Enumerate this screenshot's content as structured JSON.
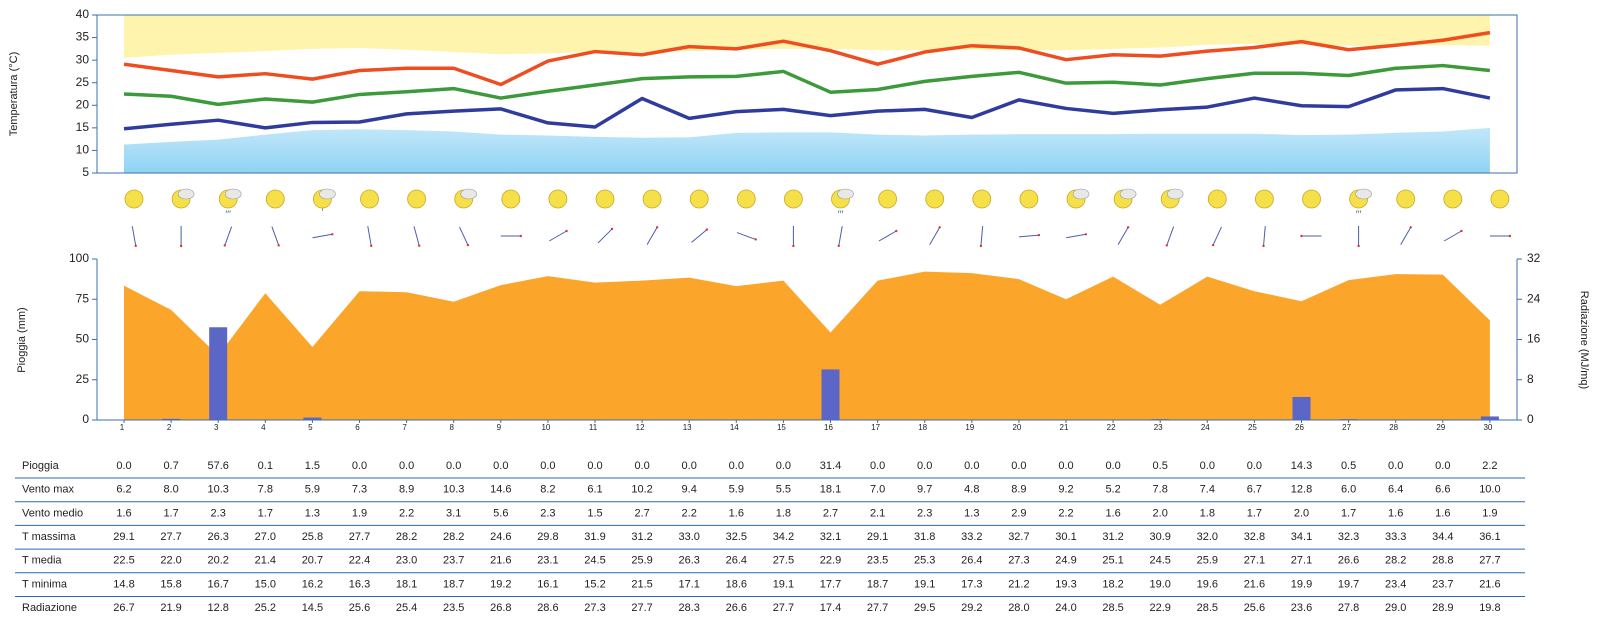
{
  "temperature_chart": {
    "type": "line",
    "y_label": "Temperatura (°C)",
    "ylim": [
      5,
      40
    ],
    "yticks": [
      5,
      10,
      15,
      20,
      25,
      30,
      35,
      40
    ],
    "band_top": {
      "color": "#fff4ad",
      "lows": [
        30.5,
        31.2,
        31.6,
        32,
        32.5,
        32.7,
        32.3,
        31.8,
        31.3,
        31.5,
        31.8,
        31.8,
        32,
        32.3,
        32.5,
        32.5,
        32.2,
        32.2,
        32.3,
        32.2,
        32.2,
        32.5,
        32.8,
        33.4,
        33.6,
        33.4,
        33.2,
        33.2,
        33.3,
        33.2
      ]
    },
    "band_bottom": {
      "color": "#8fd3f4",
      "highs": [
        11.3,
        11.9,
        12.4,
        13.5,
        14.5,
        14.7,
        14.5,
        14.2,
        13.5,
        13.3,
        13,
        12.8,
        12.9,
        13.9,
        14,
        14,
        13.5,
        13.3,
        13.5,
        13.6,
        13.6,
        13.6,
        13.7,
        13.7,
        13.7,
        13.4,
        13.5,
        13.9,
        14.2,
        15
      ]
    }
  },
  "rain_chart": {
    "type": "bar",
    "y_label": "Pioggia (mm)",
    "y2_label": "Radiazione (MJ/mq)",
    "ylim": [
      0,
      100
    ],
    "yticks": [
      0,
      25,
      50,
      75,
      100
    ],
    "y2lim": [
      0,
      32
    ],
    "y2ticks": [
      0,
      8,
      16,
      24,
      32
    ],
    "categories": [
      "1",
      "2",
      "3",
      "4",
      "5",
      "6",
      "7",
      "8",
      "9",
      "10",
      "11",
      "12",
      "13",
      "14",
      "15",
      "16",
      "17",
      "18",
      "19",
      "20",
      "21",
      "22",
      "23",
      "24",
      "25",
      "26",
      "27",
      "28",
      "29",
      "30"
    ]
  },
  "table": {
    "rows": [
      {
        "label": "Pioggia",
        "color": "#5b66c6",
        "values": [
          "0.0",
          "0.7",
          "57.6",
          "0.1",
          "1.5",
          "0.0",
          "0.0",
          "0.0",
          "0.0",
          "0.0",
          "0.0",
          "0.0",
          "0.0",
          "0.0",
          "0.0",
          "31.4",
          "0.0",
          "0.0",
          "0.0",
          "0.0",
          "0.0",
          "0.0",
          "0.5",
          "0.0",
          "0.0",
          "14.3",
          "0.5",
          "0.0",
          "0.0",
          "2.2"
        ]
      },
      {
        "label": "Vento max",
        "values": [
          "6.2",
          "8.0",
          "10.3",
          "7.8",
          "5.9",
          "7.3",
          "8.9",
          "10.3",
          "14.6",
          "8.2",
          "6.1",
          "10.2",
          "9.4",
          "5.9",
          "5.5",
          "18.1",
          "7.0",
          "9.7",
          "4.8",
          "8.9",
          "9.2",
          "5.2",
          "7.8",
          "7.4",
          "6.7",
          "12.8",
          "6.0",
          "6.4",
          "6.6",
          "10.0"
        ]
      },
      {
        "label": "Vento medio",
        "values": [
          "1.6",
          "1.7",
          "2.3",
          "1.7",
          "1.3",
          "1.9",
          "2.2",
          "3.1",
          "5.6",
          "2.3",
          "1.5",
          "2.7",
          "2.2",
          "1.6",
          "1.8",
          "2.7",
          "2.1",
          "2.3",
          "1.3",
          "2.9",
          "2.2",
          "1.6",
          "2.0",
          "1.8",
          "1.7",
          "2.0",
          "1.7",
          "1.6",
          "1.6",
          "1.9"
        ]
      },
      {
        "label": "T massima",
        "color": "#ee4d1f",
        "values": [
          "29.1",
          "27.7",
          "26.3",
          "27.0",
          "25.8",
          "27.7",
          "28.2",
          "28.2",
          "24.6",
          "29.8",
          "31.9",
          "31.2",
          "33.0",
          "32.5",
          "34.2",
          "32.1",
          "29.1",
          "31.8",
          "33.2",
          "32.7",
          "30.1",
          "31.2",
          "30.9",
          "32.0",
          "32.8",
          "34.1",
          "32.3",
          "33.3",
          "34.4",
          "36.1"
        ]
      },
      {
        "label": "T media",
        "color": "#3d9a3a",
        "values": [
          "22.5",
          "22.0",
          "20.2",
          "21.4",
          "20.7",
          "22.4",
          "23.0",
          "23.7",
          "21.6",
          "23.1",
          "24.5",
          "25.9",
          "26.3",
          "26.4",
          "27.5",
          "22.9",
          "23.5",
          "25.3",
          "26.4",
          "27.3",
          "24.9",
          "25.1",
          "24.5",
          "25.9",
          "27.1",
          "27.1",
          "26.6",
          "28.2",
          "28.8",
          "27.7"
        ]
      },
      {
        "label": "T minima",
        "color": "#2f3c9e",
        "values": [
          "14.8",
          "15.8",
          "16.7",
          "15.0",
          "16.2",
          "16.3",
          "18.1",
          "18.7",
          "19.2",
          "16.1",
          "15.2",
          "21.5",
          "17.1",
          "18.6",
          "19.1",
          "17.7",
          "18.7",
          "19.1",
          "17.3",
          "21.2",
          "19.3",
          "18.2",
          "19.0",
          "19.6",
          "21.6",
          "19.9",
          "19.7",
          "23.4",
          "23.7",
          "21.6"
        ]
      },
      {
        "label": "Radiazione",
        "color": "#fba52a",
        "values": [
          "26.7",
          "21.9",
          "12.8",
          "25.2",
          "14.5",
          "25.6",
          "25.4",
          "23.5",
          "26.8",
          "28.6",
          "27.3",
          "27.7",
          "28.3",
          "26.6",
          "27.7",
          "17.4",
          "27.7",
          "29.5",
          "29.2",
          "28.0",
          "24.0",
          "28.5",
          "22.9",
          "28.5",
          "25.6",
          "23.6",
          "27.8",
          "29.0",
          "28.9",
          "19.8"
        ]
      }
    ]
  }
}
